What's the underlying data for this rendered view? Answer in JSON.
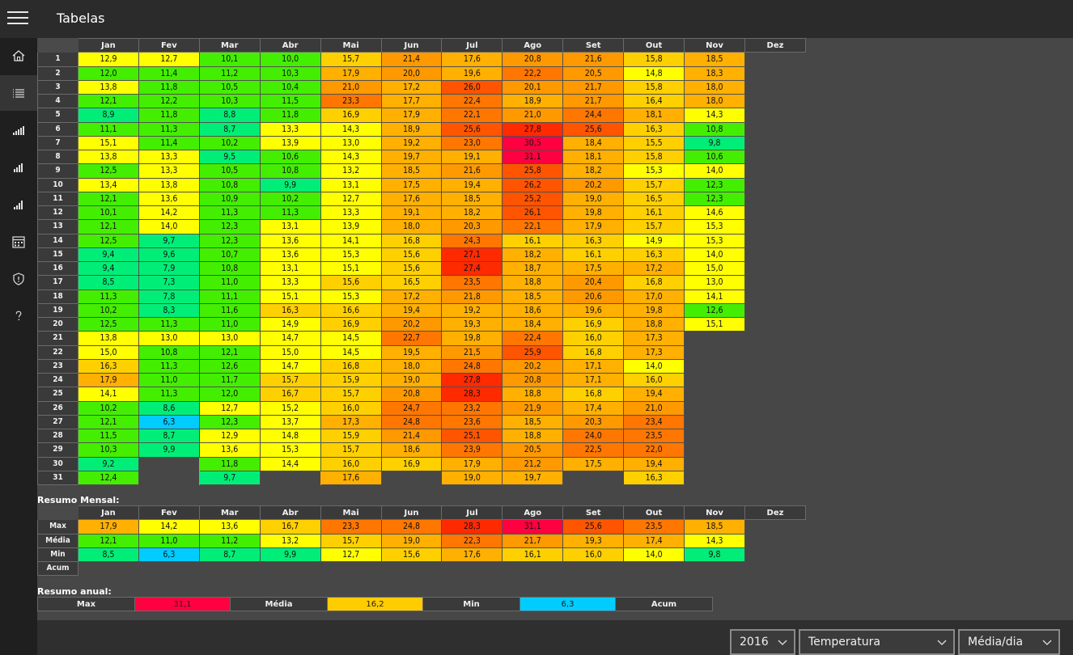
{
  "app": {
    "title": "Tabelas"
  },
  "nav": [
    "home-icon",
    "list-icon",
    "bars-icon",
    "bars-icon",
    "bars-icon",
    "calendar-icon",
    "shield-icon",
    "help-icon"
  ],
  "months": [
    "Jan",
    "Fev",
    "Mar",
    "Abr",
    "Mai",
    "Jun",
    "Jul",
    "Ago",
    "Set",
    "Out",
    "Nov",
    "Dez"
  ],
  "days": [
    [
      "12,9",
      "12,7",
      "10,1",
      "10,0",
      "15,7",
      "21,4",
      "17,6",
      "20,8",
      "21,6",
      "15,8",
      "18,5",
      ""
    ],
    [
      "12,0",
      "11,4",
      "11,2",
      "10,3",
      "17,9",
      "20,0",
      "19,6",
      "22,2",
      "20,5",
      "14,8",
      "18,3",
      ""
    ],
    [
      "13,8",
      "11,8",
      "10,5",
      "10,4",
      "21,0",
      "17,2",
      "26,0",
      "20,1",
      "21,7",
      "15,8",
      "18,0",
      ""
    ],
    [
      "12,1",
      "12,2",
      "10,3",
      "11,5",
      "23,3",
      "17,7",
      "22,4",
      "18,9",
      "21,7",
      "16,4",
      "18,0",
      ""
    ],
    [
      "8,9",
      "11,8",
      "8,8",
      "11,8",
      "16,9",
      "17,9",
      "22,1",
      "21,0",
      "24,4",
      "18,1",
      "14,3",
      ""
    ],
    [
      "11,1",
      "11,3",
      "8,7",
      "13,3",
      "14,3",
      "18,9",
      "25,6",
      "27,8",
      "25,6",
      "16,3",
      "10,8",
      ""
    ],
    [
      "15,1",
      "11,4",
      "10,2",
      "13,9",
      "13,0",
      "19,2",
      "23,0",
      "30,5",
      "18,4",
      "15,5",
      "9,8",
      ""
    ],
    [
      "13,8",
      "13,3",
      "9,5",
      "10,6",
      "14,3",
      "19,7",
      "19,1",
      "31,1",
      "18,1",
      "15,8",
      "10,6",
      ""
    ],
    [
      "12,5",
      "13,3",
      "10,5",
      "10,8",
      "13,2",
      "18,5",
      "21,6",
      "25,8",
      "18,2",
      "15,3",
      "14,0",
      ""
    ],
    [
      "13,4",
      "13,8",
      "10,8",
      "9,9",
      "13,1",
      "17,5",
      "19,4",
      "26,2",
      "20,2",
      "15,7",
      "12,3",
      ""
    ],
    [
      "12,1",
      "13,6",
      "10,9",
      "10,2",
      "12,7",
      "17,6",
      "18,5",
      "25,2",
      "19,0",
      "16,5",
      "12,3",
      ""
    ],
    [
      "10,1",
      "14,2",
      "11,3",
      "11,3",
      "13,3",
      "19,1",
      "18,2",
      "26,1",
      "19,8",
      "16,1",
      "14,6",
      ""
    ],
    [
      "12,1",
      "14,0",
      "12,3",
      "13,1",
      "13,9",
      "18,0",
      "20,3",
      "22,1",
      "17,9",
      "15,7",
      "15,3",
      ""
    ],
    [
      "12,5",
      "9,7",
      "12,3",
      "13,6",
      "14,1",
      "16,8",
      "24,3",
      "16,1",
      "16,3",
      "14,9",
      "15,3",
      ""
    ],
    [
      "9,4",
      "9,6",
      "10,7",
      "13,6",
      "15,3",
      "15,6",
      "27,1",
      "18,2",
      "16,1",
      "16,3",
      "14,0",
      ""
    ],
    [
      "9,4",
      "7,9",
      "10,8",
      "13,1",
      "15,1",
      "15,6",
      "27,4",
      "18,7",
      "17,5",
      "17,2",
      "15,0",
      ""
    ],
    [
      "8,5",
      "7,3",
      "11,0",
      "13,3",
      "15,6",
      "16,5",
      "23,5",
      "18,8",
      "20,4",
      "16,8",
      "13,0",
      ""
    ],
    [
      "11,3",
      "7,8",
      "11,1",
      "15,1",
      "15,3",
      "17,2",
      "21,8",
      "18,5",
      "20,6",
      "17,0",
      "14,1",
      ""
    ],
    [
      "10,2",
      "8,3",
      "11,6",
      "16,3",
      "16,6",
      "19,4",
      "19,2",
      "18,6",
      "19,6",
      "19,8",
      "12,6",
      ""
    ],
    [
      "12,5",
      "11,3",
      "11,0",
      "14,9",
      "16,9",
      "20,2",
      "19,3",
      "18,4",
      "16,9",
      "18,8",
      "15,1",
      ""
    ],
    [
      "13,8",
      "13,0",
      "13,0",
      "14,7",
      "14,5",
      "22,7",
      "19,8",
      "22,4",
      "16,0",
      "17,3",
      "",
      ""
    ],
    [
      "15,0",
      "10,8",
      "12,1",
      "15,0",
      "14,5",
      "19,5",
      "21,5",
      "25,9",
      "16,8",
      "17,3",
      "",
      ""
    ],
    [
      "16,3",
      "11,3",
      "12,6",
      "14,7",
      "16,8",
      "18,0",
      "24,8",
      "20,2",
      "17,1",
      "14,0",
      "",
      ""
    ],
    [
      "17,9",
      "11,0",
      "11,7",
      "15,7",
      "15,9",
      "19,0",
      "27,8",
      "20,8",
      "17,1",
      "16,0",
      "",
      ""
    ],
    [
      "14,1",
      "11,3",
      "12,0",
      "16,7",
      "15,7",
      "20,8",
      "28,3",
      "18,8",
      "16,8",
      "19,4",
      "",
      ""
    ],
    [
      "10,2",
      "8,6",
      "12,7",
      "15,2",
      "16,0",
      "24,7",
      "23,2",
      "21,9",
      "17,4",
      "21,0",
      "",
      ""
    ],
    [
      "12,1",
      "6,3",
      "12,3",
      "13,7",
      "17,3",
      "24,8",
      "23,6",
      "18,5",
      "20,3",
      "23,4",
      "",
      ""
    ],
    [
      "11,5",
      "8,7",
      "12,9",
      "14,8",
      "15,9",
      "21,4",
      "25,1",
      "18,8",
      "24,0",
      "23,5",
      "",
      ""
    ],
    [
      "10,3",
      "9,9",
      "13,6",
      "15,3",
      "15,7",
      "18,6",
      "23,9",
      "20,5",
      "22,5",
      "22,0",
      "",
      ""
    ],
    [
      "9,2",
      "",
      "11,8",
      "14,4",
      "16,0",
      "16,9",
      "17,9",
      "21,2",
      "17,5",
      "19,4",
      "",
      ""
    ],
    [
      "12,4",
      "",
      "9,7",
      "",
      "17,6",
      "",
      "19,0",
      "19,7",
      "",
      "16,3",
      "",
      ""
    ]
  ],
  "monthly": {
    "label": "Resumo Mensal:",
    "rows": [
      {
        "name": "Max",
        "values": [
          "17,9",
          "14,2",
          "13,6",
          "16,7",
          "23,3",
          "24,8",
          "28,3",
          "31,1",
          "25,6",
          "23,5",
          "18,5",
          ""
        ]
      },
      {
        "name": "Média",
        "values": [
          "12,1",
          "11,0",
          "11,2",
          "13,2",
          "15,7",
          "19,0",
          "22,3",
          "21,7",
          "19,3",
          "17,4",
          "14,3",
          ""
        ]
      },
      {
        "name": "Min",
        "values": [
          "8,5",
          "6,3",
          "8,7",
          "9,9",
          "12,7",
          "15,6",
          "17,6",
          "16,1",
          "16,0",
          "14,0",
          "9,8",
          ""
        ]
      },
      {
        "name": "Acum",
        "values": []
      }
    ]
  },
  "annual": {
    "label": "Resumo anual:",
    "items": [
      {
        "name": "Max",
        "value": "31,1",
        "color": "#ff0040"
      },
      {
        "name": "Média",
        "value": "16,2",
        "color": "#ffcc00"
      },
      {
        "name": "Min",
        "value": "6,3",
        "color": "#00ccff"
      },
      {
        "name": "Acum",
        "value": "",
        "color": ""
      }
    ]
  },
  "controls": {
    "year": "2016",
    "variable": "Temperatura",
    "mode": "Média/dia"
  }
}
